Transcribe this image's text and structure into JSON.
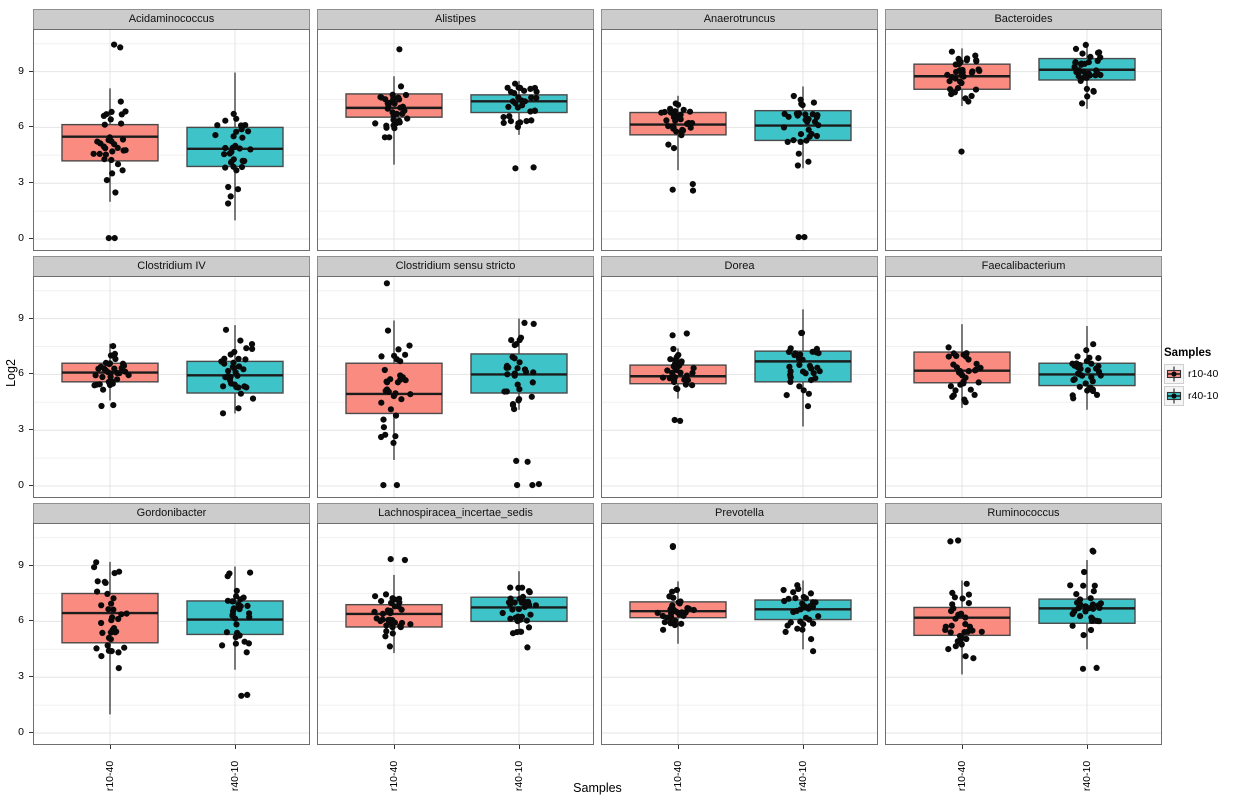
{
  "chart_data": {
    "type": "boxplot",
    "xlabel": "Samples",
    "ylabel": "Log2",
    "yticks": [
      9,
      6,
      3,
      0
    ],
    "ylim": [
      -0.5,
      11.2
    ],
    "categories": [
      "r10-40",
      "r40-10"
    ],
    "facets": {
      "rows": 3,
      "cols": 4
    },
    "legend": {
      "title": "Samples",
      "position": "right",
      "entries": [
        {
          "label": "r10-40",
          "color": "#F98B81"
        },
        {
          "label": "r40-10",
          "color": "#3EC4C8"
        }
      ]
    },
    "colors": {
      "r10-40": "#F98B81",
      "r40-10": "#3EC4C8",
      "points": "#0a0a0a",
      "box_border": "#4a4a4a",
      "median": "#1c1c1c",
      "whisker": "#333333",
      "strip_bg": "#cccccc",
      "strip_border": "#8f8f8f",
      "panel_border": "#6e6e6e",
      "panel_bg": "#ffffff",
      "grid_major": "#e4e4e4",
      "grid_minor": "#f1f1f1"
    },
    "panels": [
      {
        "title": "Acidaminococcus",
        "boxes": [
          {
            "group": "r10-40",
            "low": 2.0,
            "q1": 4.2,
            "med": 5.5,
            "q3": 6.15,
            "high": 8.1,
            "outliers": [
              10.45,
              10.3,
              0.05,
              0.05
            ],
            "n": 36
          },
          {
            "group": "r40-10",
            "low": 1.0,
            "q1": 3.9,
            "med": 4.85,
            "q3": 6.0,
            "high": 8.95,
            "outliers": [],
            "n": 34
          }
        ]
      },
      {
        "title": "Alistipes",
        "boxes": [
          {
            "group": "r10-40",
            "low": 4.0,
            "q1": 6.55,
            "med": 7.05,
            "q3": 7.8,
            "high": 8.75,
            "outliers": [
              10.2
            ],
            "n": 36
          },
          {
            "group": "r40-10",
            "low": 5.6,
            "q1": 6.8,
            "med": 7.4,
            "q3": 7.75,
            "high": 8.5,
            "outliers": [
              3.8,
              3.85
            ],
            "n": 34
          }
        ]
      },
      {
        "title": "Anaerotruncus",
        "boxes": [
          {
            "group": "r10-40",
            "low": 3.7,
            "q1": 5.6,
            "med": 6.15,
            "q3": 6.8,
            "high": 7.7,
            "outliers": [
              2.95,
              2.6,
              2.65
            ],
            "n": 35
          },
          {
            "group": "r40-10",
            "low": 3.8,
            "q1": 5.3,
            "med": 6.1,
            "q3": 6.9,
            "high": 8.2,
            "outliers": [
              0.1,
              0.1
            ],
            "n": 34
          }
        ]
      },
      {
        "title": "Bacteroides",
        "boxes": [
          {
            "group": "r10-40",
            "low": 7.15,
            "q1": 8.05,
            "med": 8.75,
            "q3": 9.4,
            "high": 10.25,
            "outliers": [
              4.7
            ],
            "n": 36
          },
          {
            "group": "r40-10",
            "low": 7.0,
            "q1": 8.55,
            "med": 9.1,
            "q3": 9.7,
            "high": 10.45,
            "outliers": [],
            "n": 35
          }
        ]
      },
      {
        "title": "Clostridium IV",
        "boxes": [
          {
            "group": "r10-40",
            "low": 4.6,
            "q1": 5.6,
            "med": 6.1,
            "q3": 6.6,
            "high": 7.65,
            "outliers": [
              4.3,
              4.35
            ],
            "n": 35
          },
          {
            "group": "r40-10",
            "low": 3.9,
            "q1": 5.0,
            "med": 5.95,
            "q3": 6.7,
            "high": 8.65,
            "outliers": [],
            "n": 35
          }
        ]
      },
      {
        "title": "Clostridium sensu stricto",
        "boxes": [
          {
            "group": "r10-40",
            "low": 1.4,
            "q1": 3.9,
            "med": 4.95,
            "q3": 6.6,
            "high": 8.9,
            "outliers": [
              10.9,
              0.05,
              0.05
            ],
            "n": 36
          },
          {
            "group": "r40-10",
            "low": 4.1,
            "q1": 5.0,
            "med": 6.0,
            "q3": 7.1,
            "high": 9.0,
            "outliers": [
              1.3,
              1.35,
              0.05,
              0.05,
              0.1
            ],
            "n": 36
          }
        ]
      },
      {
        "title": "Dorea",
        "boxes": [
          {
            "group": "r10-40",
            "low": 4.7,
            "q1": 5.5,
            "med": 5.9,
            "q3": 6.5,
            "high": 7.4,
            "outliers": [
              8.2,
              8.1,
              3.5,
              3.55
            ],
            "n": 36
          },
          {
            "group": "r40-10",
            "low": 3.2,
            "q1": 5.6,
            "med": 6.7,
            "q3": 7.25,
            "high": 9.5,
            "outliers": [],
            "n": 34
          }
        ]
      },
      {
        "title": "Faecalibacterium",
        "boxes": [
          {
            "group": "r10-40",
            "low": 4.2,
            "q1": 5.55,
            "med": 6.2,
            "q3": 7.2,
            "high": 8.7,
            "outliers": [],
            "n": 33
          },
          {
            "group": "r40-10",
            "low": 4.1,
            "q1": 5.4,
            "med": 6.0,
            "q3": 6.6,
            "high": 8.6,
            "outliers": [],
            "n": 35
          }
        ]
      },
      {
        "title": "Gordonibacter",
        "boxes": [
          {
            "group": "r10-40",
            "low": 1.0,
            "q1": 4.85,
            "med": 6.45,
            "q3": 7.5,
            "high": 9.2,
            "outliers": [],
            "n": 36
          },
          {
            "group": "r40-10",
            "low": 3.4,
            "q1": 5.3,
            "med": 6.1,
            "q3": 7.1,
            "high": 8.95,
            "outliers": [
              2.0,
              2.05
            ],
            "n": 34
          }
        ]
      },
      {
        "title": "Lachnospiracea_incertae_sedis",
        "boxes": [
          {
            "group": "r10-40",
            "low": 4.3,
            "q1": 5.7,
            "med": 6.4,
            "q3": 6.9,
            "high": 8.5,
            "outliers": [
              9.35,
              9.3
            ],
            "n": 36
          },
          {
            "group": "r40-10",
            "low": 5.35,
            "q1": 6.0,
            "med": 6.75,
            "q3": 7.3,
            "high": 8.7,
            "outliers": [
              4.6
            ],
            "n": 35
          }
        ]
      },
      {
        "title": "Prevotella",
        "boxes": [
          {
            "group": "r10-40",
            "low": 4.8,
            "q1": 6.2,
            "med": 6.55,
            "q3": 7.05,
            "high": 8.15,
            "outliers": [
              10.0,
              10.05
            ],
            "n": 35
          },
          {
            "group": "r40-10",
            "low": 4.5,
            "q1": 6.1,
            "med": 6.65,
            "q3": 7.15,
            "high": 8.2,
            "outliers": [
              4.4
            ],
            "n": 35
          }
        ]
      },
      {
        "title": "Ruminococcus",
        "boxes": [
          {
            "group": "r10-40",
            "low": 3.15,
            "q1": 5.25,
            "med": 6.2,
            "q3": 6.75,
            "high": 8.2,
            "outliers": [
              10.3,
              10.35
            ],
            "n": 36
          },
          {
            "group": "r40-10",
            "low": 4.5,
            "q1": 5.9,
            "med": 6.7,
            "q3": 7.2,
            "high": 9.3,
            "outliers": [
              9.8,
              9.75,
              3.5,
              3.45
            ],
            "n": 35
          }
        ]
      }
    ]
  }
}
